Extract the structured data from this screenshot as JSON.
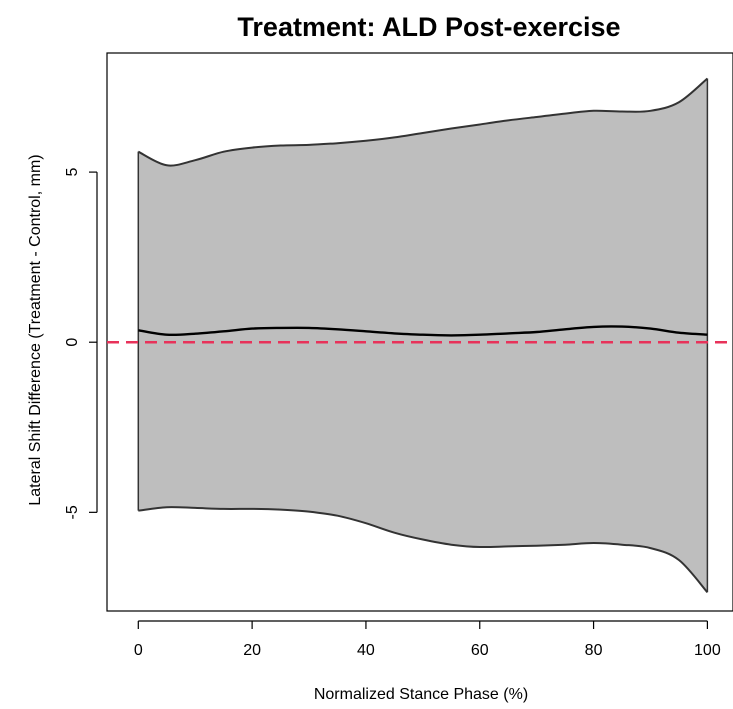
{
  "chart_data": {
    "type": "area",
    "title": "Treatment: ALD Post-exercise",
    "xlabel": "Normalized Stance Phase (%)",
    "ylabel": "Lateral Shift Difference (Treatment - Control, mm)",
    "xlim": [
      -5.5,
      104.5
    ],
    "ylim": [
      -7.9,
      8.5
    ],
    "xticks": [
      0,
      20,
      40,
      60,
      80,
      100
    ],
    "yticks": [
      -5,
      0,
      5
    ],
    "grid": false,
    "reference_line": {
      "y": 0,
      "color": "#e8325a",
      "style": "dashed"
    },
    "band": {
      "fill": "#bebebe",
      "x": [
        0,
        5,
        10,
        15,
        20,
        25,
        30,
        35,
        40,
        45,
        50,
        55,
        60,
        65,
        70,
        75,
        80,
        85,
        90,
        95,
        100
      ],
      "upper": [
        5.6,
        5.2,
        5.35,
        5.6,
        5.72,
        5.78,
        5.8,
        5.85,
        5.92,
        6.02,
        6.15,
        6.28,
        6.4,
        6.52,
        6.62,
        6.72,
        6.8,
        6.78,
        6.8,
        7.05,
        7.75
      ],
      "lower": [
        -4.95,
        -4.85,
        -4.87,
        -4.9,
        -4.9,
        -4.92,
        -4.98,
        -5.1,
        -5.32,
        -5.6,
        -5.8,
        -5.95,
        -6.02,
        -6.0,
        -5.98,
        -5.95,
        -5.9,
        -5.95,
        -6.05,
        -6.4,
        -7.35
      ]
    },
    "series": [
      {
        "values_x": [
          0,
          5,
          10,
          15,
          20,
          25,
          30,
          35,
          40,
          45,
          50,
          55,
          60,
          65,
          70,
          75,
          80,
          85,
          90,
          95,
          100
        ],
        "values": [
          0.35,
          0.22,
          0.25,
          0.32,
          0.4,
          0.42,
          0.42,
          0.38,
          0.32,
          0.26,
          0.22,
          0.2,
          0.22,
          0.26,
          0.3,
          0.38,
          0.45,
          0.46,
          0.4,
          0.28,
          0.22
        ],
        "color": "#000000"
      }
    ]
  }
}
